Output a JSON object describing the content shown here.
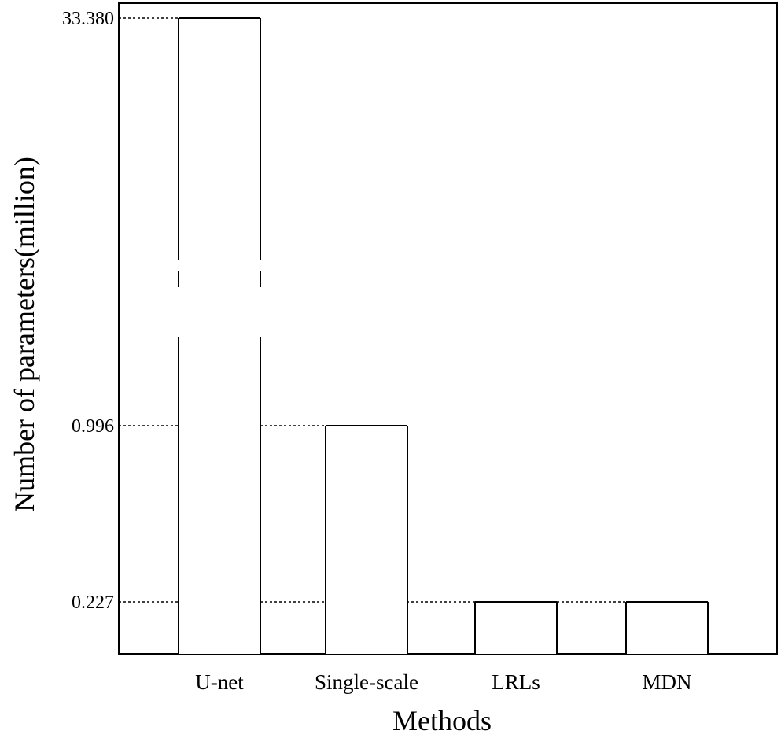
{
  "chart_data": {
    "type": "bar",
    "categories": [
      "U-net",
      "Single-scale",
      "LRLs",
      "MDN"
    ],
    "values": [
      33.38,
      0.996,
      0.227,
      0.227
    ],
    "title": "",
    "xlabel": "Methods",
    "ylabel": "Number of parameters(million)",
    "y_tick_labels": [
      "33.380",
      "0.996",
      "0.227"
    ],
    "y_axis_break": true,
    "grid": false,
    "legend": "none",
    "bar_fill": "#ffffff",
    "bar_stroke": "#000000"
  }
}
